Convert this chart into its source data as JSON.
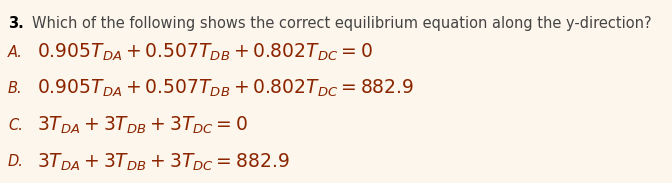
{
  "background_color": "#fdf6ec",
  "question_number": "3.",
  "question_text": "Which of the following shows the correct equilibrium equation along the y-direction?",
  "options": [
    {
      "label": "A.",
      "math": "$0.905T_{DA} + 0.507T_{DB} + 0.802T_{DC} = 0$"
    },
    {
      "label": "B.",
      "math": "$0.905T_{DA} + 0.507T_{DB} + 0.802T_{DC} = 882.9$"
    },
    {
      "label": "C.",
      "math": "$3T_{DA} + 3T_{DB} + 3T_{DC} = 0$"
    },
    {
      "label": "D.",
      "math": "$3T_{DA} + 3T_{DB} + 3T_{DC} = 882.9$"
    }
  ],
  "question_fontsize": 10.5,
  "option_fontsize": 13.5,
  "label_fontsize": 10.5,
  "text_color": "#8B2500",
  "question_number_color": "#000000",
  "question_body_color": "#444444",
  "background_color2": "#fdf6ec",
  "figsize": [
    6.72,
    1.83
  ],
  "dpi": 100
}
